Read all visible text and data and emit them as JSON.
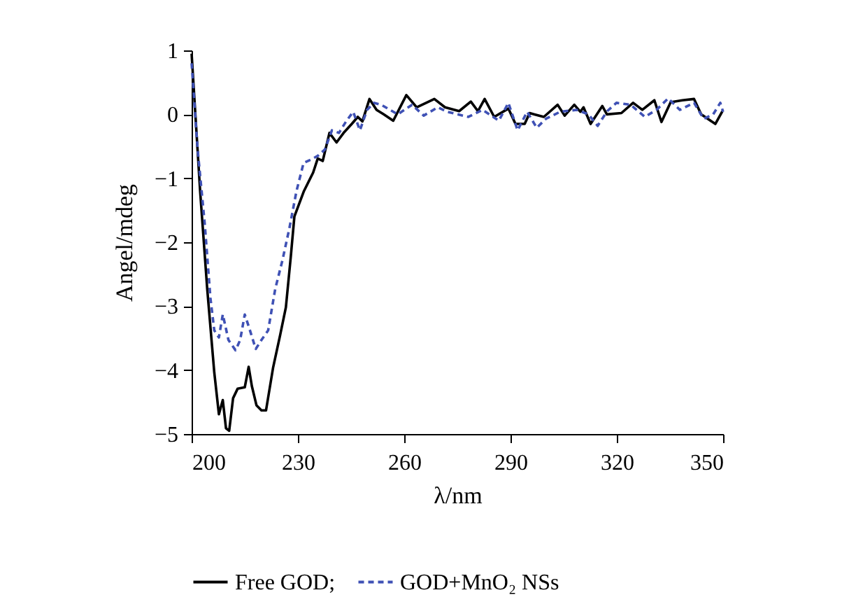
{
  "chart_data": {
    "type": "line",
    "xlabel": "λ/nm",
    "ylabel": "Angel/mdeg",
    "xlim": [
      200,
      350
    ],
    "xticks": [
      200,
      230,
      260,
      290,
      320,
      350
    ],
    "ylim": [
      -5,
      1
    ],
    "yticks": [
      -5,
      -4,
      -3,
      -2,
      -1,
      0,
      1
    ],
    "grid": false,
    "legend": "bottom",
    "marker": "none",
    "series": [
      {
        "name": "Free GOD;",
        "color": "#000000",
        "line_style": "solid",
        "x": [
          200,
          202.4,
          204.4,
          206.4,
          207.7,
          208.8,
          209.7,
          210.6,
          211.7,
          213,
          215,
          216.1,
          217,
          218.3,
          219.7,
          221,
          223,
          225,
          226.6,
          228,
          229,
          231.7,
          234.3,
          235.6,
          237,
          238.9,
          240.9,
          242.9,
          245.2,
          246.9,
          248.2,
          250.2,
          252.2,
          254.2,
          256.9,
          260.6,
          263.5,
          268.5,
          271.5,
          275.5,
          278.8,
          280.8,
          282.7,
          285.4,
          289.4,
          291.4,
          294,
          295.4,
          299.4,
          303.3,
          305.3,
          308,
          309.7,
          310.6,
          312.6,
          315.9,
          317.2,
          321.3,
          324.6,
          327.2,
          330.6,
          332.6,
          335.2,
          338.5,
          341.8,
          343.8,
          347.8,
          349.8
        ],
        "values": [
          0.95,
          -1.2,
          -2.73,
          -4.04,
          -4.69,
          -4.47,
          -4.91,
          -4.95,
          -4.44,
          -4.29,
          -4.27,
          -3.95,
          -4.25,
          -4.55,
          -4.63,
          -4.63,
          -3.96,
          -3.45,
          -3.02,
          -2.22,
          -1.6,
          -1.2,
          -0.91,
          -0.69,
          -0.73,
          -0.29,
          -0.44,
          -0.29,
          -0.15,
          -0.04,
          -0.11,
          0.24,
          0.07,
          0,
          -0.1,
          0.3,
          0.11,
          0.24,
          0.11,
          0.05,
          0.2,
          0.05,
          0.24,
          -0.04,
          0.09,
          -0.15,
          -0.15,
          0.02,
          -0.04,
          0.15,
          -0.02,
          0.15,
          0.04,
          0.11,
          -0.15,
          0.13,
          0,
          0.02,
          0.18,
          0.07,
          0.22,
          -0.12,
          0.19,
          0.22,
          0.24,
          0,
          -0.15,
          0.05
        ]
      },
      {
        "name": "GOD+MnO₂ NSs",
        "color": "#3f51b5",
        "line_style": "dashed",
        "x": [
          200,
          201.7,
          203.7,
          205.3,
          206.4,
          207.7,
          208.8,
          210.4,
          212.4,
          213.7,
          215,
          216.3,
          218.1,
          219.7,
          221.6,
          223.6,
          225.6,
          227.6,
          229.6,
          231.6,
          233.6,
          235.6,
          237.6,
          239.6,
          241.6,
          243.6,
          245.6,
          247.5,
          249.5,
          251.5,
          253.5,
          258.2,
          262.2,
          265.5,
          269.5,
          272.1,
          278.1,
          282.1,
          286.7,
          289.4,
          292,
          294.7,
          297.4,
          300,
          304,
          308.6,
          312,
          314.6,
          317.3,
          319.9,
          323.9,
          327.9,
          331.2,
          334.5,
          337.8,
          341.8,
          344.5,
          347.2,
          349.2,
          350
        ],
        "values": [
          0.8,
          -0.55,
          -1.71,
          -2.87,
          -3.38,
          -3.49,
          -3.13,
          -3.53,
          -3.69,
          -3.53,
          -3.13,
          -3.35,
          -3.67,
          -3.53,
          -3.38,
          -2.73,
          -2.29,
          -1.78,
          -1.2,
          -0.76,
          -0.71,
          -0.65,
          -0.55,
          -0.25,
          -0.29,
          -0.11,
          0.04,
          -0.25,
          0.07,
          0.18,
          0.15,
          0,
          0.15,
          -0.02,
          0.11,
          0.04,
          -0.04,
          0.07,
          -0.1,
          0.18,
          -0.25,
          0.04,
          -0.21,
          -0.07,
          0.04,
          0.07,
          0,
          -0.18,
          0.05,
          0.18,
          0.15,
          -0.04,
          0.07,
          0.25,
          0.07,
          0.18,
          -0.07,
          0,
          0.18,
          0.04
        ]
      }
    ]
  }
}
